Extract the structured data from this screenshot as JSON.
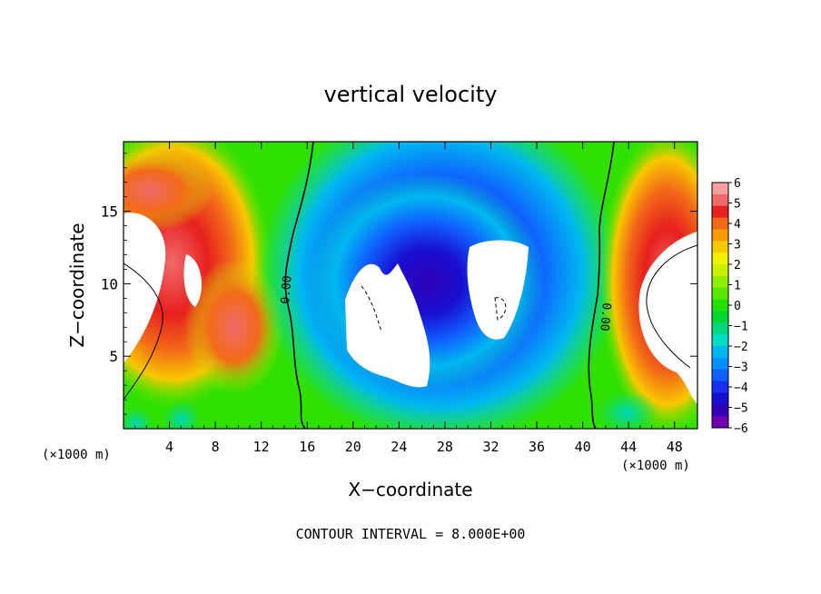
{
  "chart_data": {
    "type": "heatmap",
    "title": "vertical velocity",
    "xlabel": "X−coordinate",
    "ylabel": "Z−coordinate",
    "x_unit_label": "(×1000 m)",
    "z_unit_label": "(×1000 m)",
    "xlim": [
      0,
      50
    ],
    "ylim": [
      0,
      19.8
    ],
    "x_ticks": [
      4,
      8,
      12,
      16,
      20,
      24,
      28,
      32,
      36,
      40,
      44,
      48
    ],
    "y_ticks": [
      5,
      10,
      15
    ],
    "contour_label": "0.00",
    "footer": "CONTOUR INTERVAL = 8.000E+00",
    "colorbar": {
      "min": -6,
      "max": 6,
      "ticks": [
        "6",
        "5",
        "4",
        "3",
        "2",
        "1",
        "0",
        "−1",
        "−2",
        "−3",
        "−4",
        "−5",
        "−6"
      ],
      "colors": [
        "#f7a0a0",
        "#f06a6a",
        "#e8201e",
        "#f26a18",
        "#f89a00",
        "#f8c800",
        "#f0f000",
        "#c8f000",
        "#90ee00",
        "#58e800",
        "#20e000",
        "#00d830",
        "#00d880",
        "#00dcc8",
        "#00b8f0",
        "#0090ff",
        "#1060ff",
        "#1830f0",
        "#1810d0",
        "#3000b8",
        "#7000b0"
      ]
    },
    "features": [
      {
        "name": "left updraft",
        "sign": "positive",
        "x": [
          0,
          13
        ],
        "z": [
          0,
          17
        ]
      },
      {
        "name": "central downdraft",
        "sign": "negative",
        "x": [
          14,
          41
        ],
        "z": [
          0,
          18.5
        ]
      },
      {
        "name": "right updraft",
        "sign": "positive",
        "x": [
          41,
          50
        ],
        "z": [
          0,
          18
        ]
      }
    ]
  }
}
